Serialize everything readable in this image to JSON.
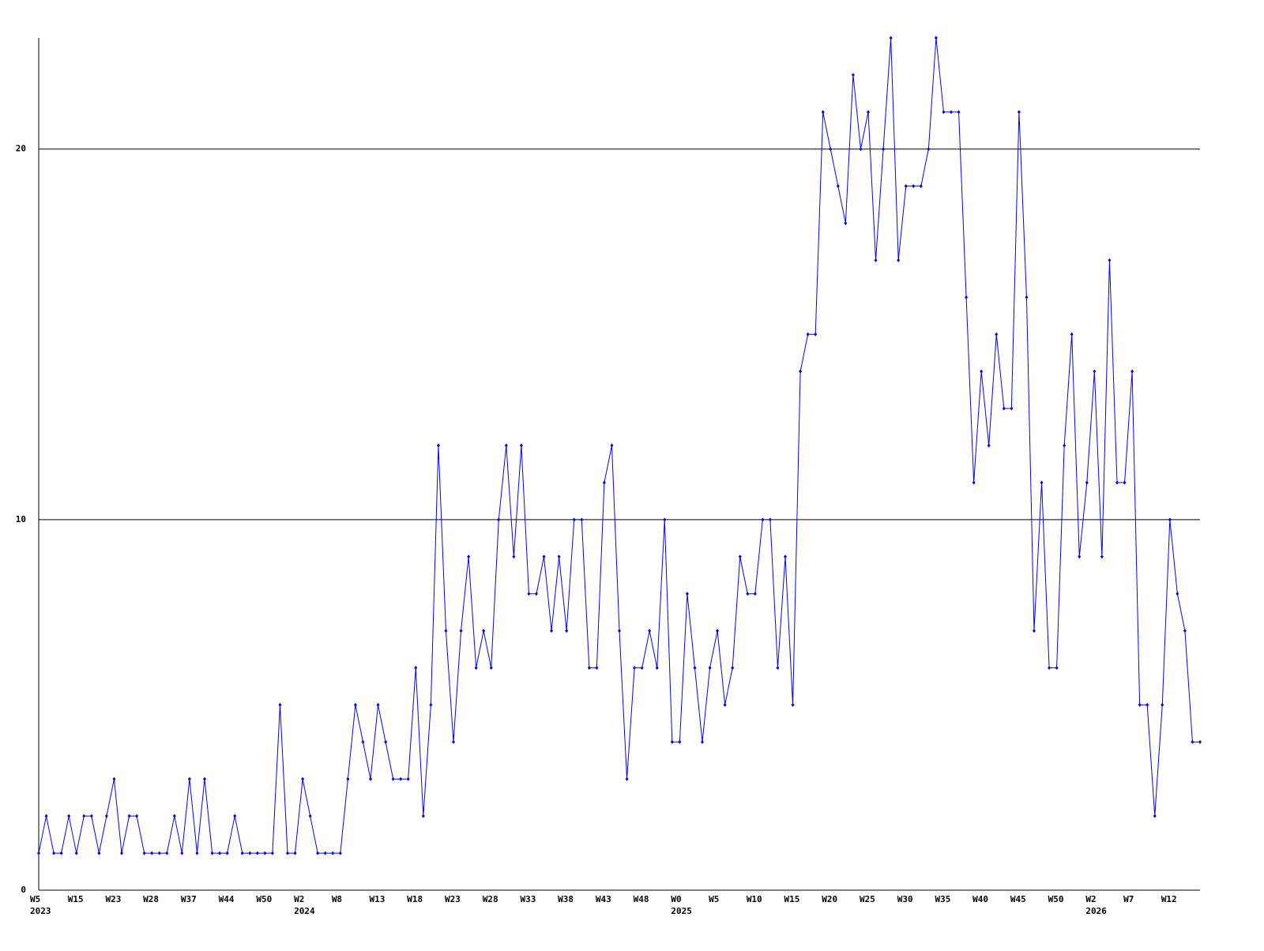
{
  "chart_data": {
    "type": "line",
    "categories": [
      "W5",
      null,
      null,
      null,
      null,
      "W15",
      null,
      null,
      null,
      null,
      "W23",
      null,
      null,
      null,
      null,
      "W28",
      null,
      null,
      null,
      null,
      "W37",
      null,
      null,
      null,
      null,
      "W44",
      null,
      null,
      null,
      null,
      "W50",
      null,
      null,
      null,
      null,
      "W2",
      null,
      null,
      null,
      null,
      "W8",
      null,
      null,
      null,
      null,
      "W13",
      null,
      null,
      null,
      null,
      "W18",
      null,
      null,
      null,
      null,
      "W23",
      null,
      null,
      null,
      null,
      "W28",
      null,
      null,
      null,
      null,
      "W33",
      null,
      null,
      null,
      null,
      "W38",
      null,
      null,
      null,
      null,
      "W43",
      null,
      null,
      null,
      null,
      "W48",
      null,
      null,
      null,
      null,
      "W0",
      null,
      null,
      null,
      null,
      "W5",
      null,
      null,
      null,
      null,
      "W10",
      null,
      null,
      null,
      null,
      "W15",
      null,
      null,
      null,
      null,
      "W20",
      null,
      null,
      null,
      null,
      "W25",
      null,
      null,
      null,
      null,
      "W30",
      null,
      null,
      null,
      null,
      "W35",
      null,
      null,
      null,
      null,
      "W40",
      null,
      null,
      null,
      null,
      "W45",
      null,
      null,
      null,
      null,
      "W50",
      null,
      null,
      null,
      null,
      "W2",
      null,
      null,
      null,
      null,
      "W7",
      null,
      null,
      null,
      null,
      "W12",
      null,
      null,
      null,
      null
    ],
    "years": [
      "2023",
      null,
      null,
      null,
      null,
      null,
      null,
      null,
      null,
      null,
      null,
      null,
      null,
      null,
      null,
      null,
      null,
      null,
      null,
      null,
      null,
      null,
      null,
      null,
      null,
      null,
      null,
      null,
      null,
      null,
      null,
      null,
      null,
      null,
      null,
      "2024",
      null,
      null,
      null,
      null,
      null,
      null,
      null,
      null,
      null,
      null,
      null,
      null,
      null,
      null,
      null,
      null,
      null,
      null,
      null,
      null,
      null,
      null,
      null,
      null,
      null,
      null,
      null,
      null,
      null,
      null,
      null,
      null,
      null,
      null,
      null,
      null,
      null,
      null,
      null,
      null,
      null,
      null,
      null,
      null,
      null,
      null,
      null,
      null,
      null,
      "2025",
      null,
      null,
      null,
      null,
      null,
      null,
      null,
      null,
      null,
      null,
      null,
      null,
      null,
      null,
      null,
      null,
      null,
      null,
      null,
      null,
      null,
      null,
      null,
      null,
      null,
      null,
      null,
      null,
      null,
      null,
      null,
      null,
      null,
      null,
      null,
      null,
      null,
      null,
      null,
      null,
      null,
      null,
      null,
      null,
      null,
      null,
      null,
      null,
      null,
      null,
      null,
      null,
      null,
      null,
      "2026",
      null,
      null,
      null,
      null,
      null,
      null,
      null,
      null,
      null,
      null,
      null,
      null,
      null,
      null
    ],
    "series": [
      {
        "color": "#0000ff",
        "values": [
          1,
          2,
          1,
          1,
          2,
          1,
          2,
          2,
          1,
          2,
          3,
          1,
          2,
          2,
          1,
          1,
          1,
          1,
          2,
          1,
          3,
          1,
          3,
          1,
          1,
          1,
          2,
          1,
          1,
          1,
          1,
          1,
          5,
          1,
          1,
          3,
          2,
          1,
          1,
          1,
          1,
          3,
          5,
          4,
          3,
          5,
          4,
          3,
          3,
          3,
          6,
          2,
          5,
          12,
          7,
          4,
          7,
          9,
          6,
          7,
          6,
          10,
          12,
          9,
          12,
          8,
          8,
          9,
          7,
          9,
          7,
          10,
          10,
          6,
          6,
          11,
          12,
          7,
          3,
          6,
          6,
          7,
          6,
          10,
          4,
          4,
          8,
          6,
          4,
          6,
          7,
          5,
          6,
          9,
          8,
          8,
          10,
          10,
          6,
          9,
          5,
          14,
          15,
          15,
          21,
          20,
          19,
          18,
          22,
          20,
          21,
          17,
          20,
          23,
          17,
          19,
          19,
          19,
          20,
          23,
          21,
          21,
          21,
          16,
          11,
          14,
          12,
          15,
          13,
          13,
          21,
          16,
          7,
          11,
          6,
          6,
          12,
          15,
          9,
          11,
          14,
          9,
          17,
          11,
          11,
          14,
          5,
          5,
          2,
          5,
          10,
          8,
          7,
          4,
          4
        ]
      }
    ],
    "ylim": [
      0,
      23
    ],
    "yticks": [
      0,
      10,
      20
    ],
    "grid": true
  }
}
